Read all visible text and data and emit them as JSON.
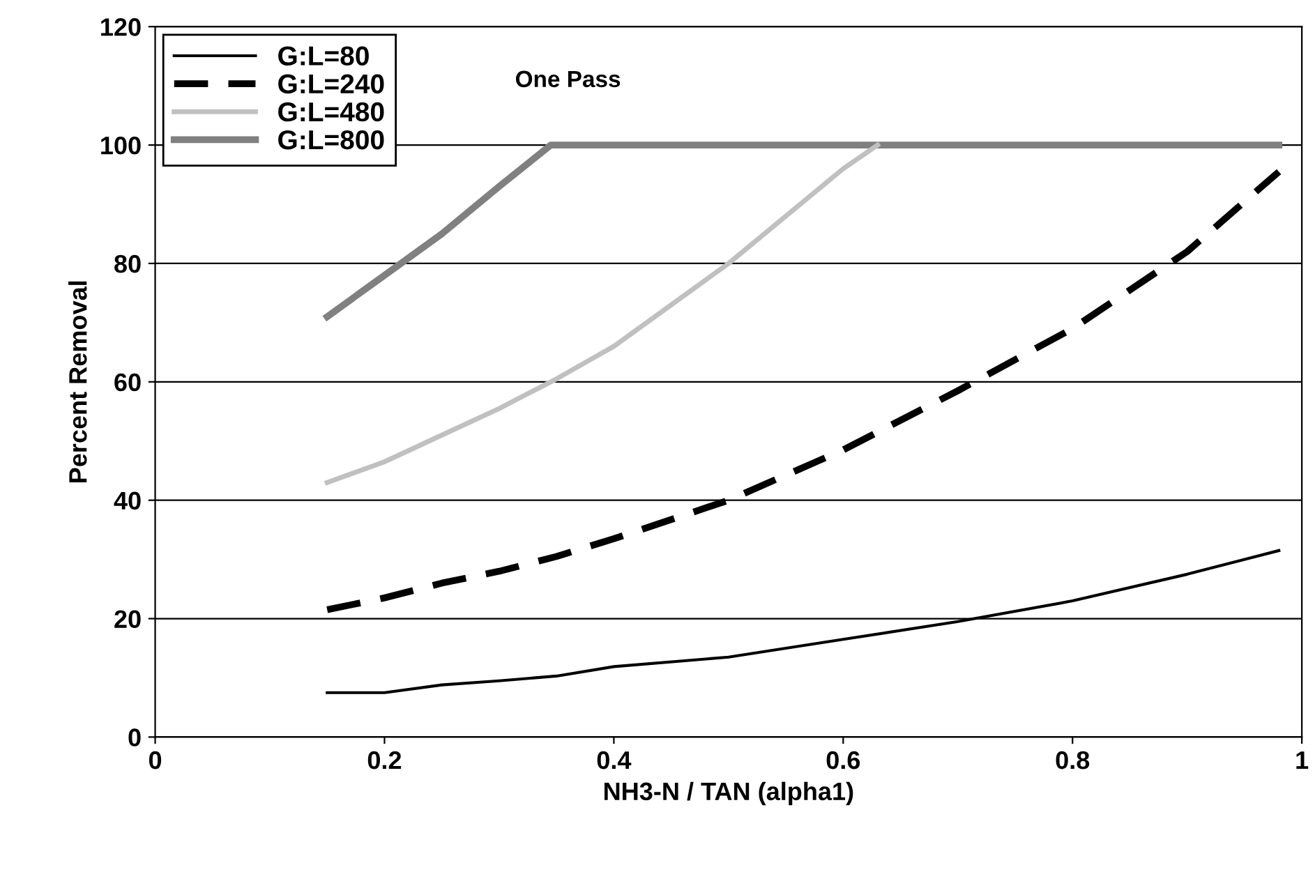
{
  "chart_data": {
    "type": "line",
    "title": "One Pass",
    "xlabel": "NH3-N / TAN (alpha1)",
    "ylabel": "Percent Removal",
    "xlim": [
      0,
      1
    ],
    "xticks": [
      0,
      0.2,
      0.4,
      0.6,
      0.8,
      1
    ],
    "ylim": [
      0,
      120
    ],
    "yticks": [
      0,
      20,
      40,
      60,
      80,
      100,
      120
    ],
    "grid": "y",
    "legend": "top left",
    "marker": "none",
    "series": [
      {
        "name": "G:L=80",
        "color": "#000000",
        "line_style": "solid",
        "x": [
          0.15,
          0.2,
          0.25,
          0.3,
          0.35,
          0.4,
          0.5,
          0.6,
          0.7,
          0.8,
          0.9,
          0.98
        ],
        "values": [
          7.5,
          7.5,
          8.8,
          9.5,
          10.3,
          11.9,
          13.5,
          16.5,
          19.5,
          23,
          27.5,
          31.5
        ]
      },
      {
        "name": "G:L=240",
        "color": "#000000",
        "line_style": "dashed",
        "x": [
          0.15,
          0.2,
          0.25,
          0.3,
          0.35,
          0.4,
          0.5,
          0.6,
          0.7,
          0.8,
          0.9,
          0.98
        ],
        "values": [
          21.5,
          23.5,
          26,
          28,
          30.5,
          33.5,
          40,
          48.5,
          58.5,
          69,
          82,
          95.5
        ]
      },
      {
        "name": "G:L=480",
        "color": "#c0c0c0",
        "line_style": "solid",
        "x": [
          0.15,
          0.2,
          0.25,
          0.3,
          0.35,
          0.4,
          0.5,
          0.6,
          0.63
        ],
        "values": [
          43,
          46.5,
          51,
          55.5,
          60.5,
          66,
          80,
          96,
          100
        ]
      },
      {
        "name": "G:L=800",
        "color": "#808080",
        "line_style": "solid",
        "x": [
          0.15,
          0.2,
          0.25,
          0.3,
          0.345,
          0.98
        ],
        "values": [
          71,
          78,
          85,
          93,
          100,
          100
        ]
      }
    ]
  }
}
